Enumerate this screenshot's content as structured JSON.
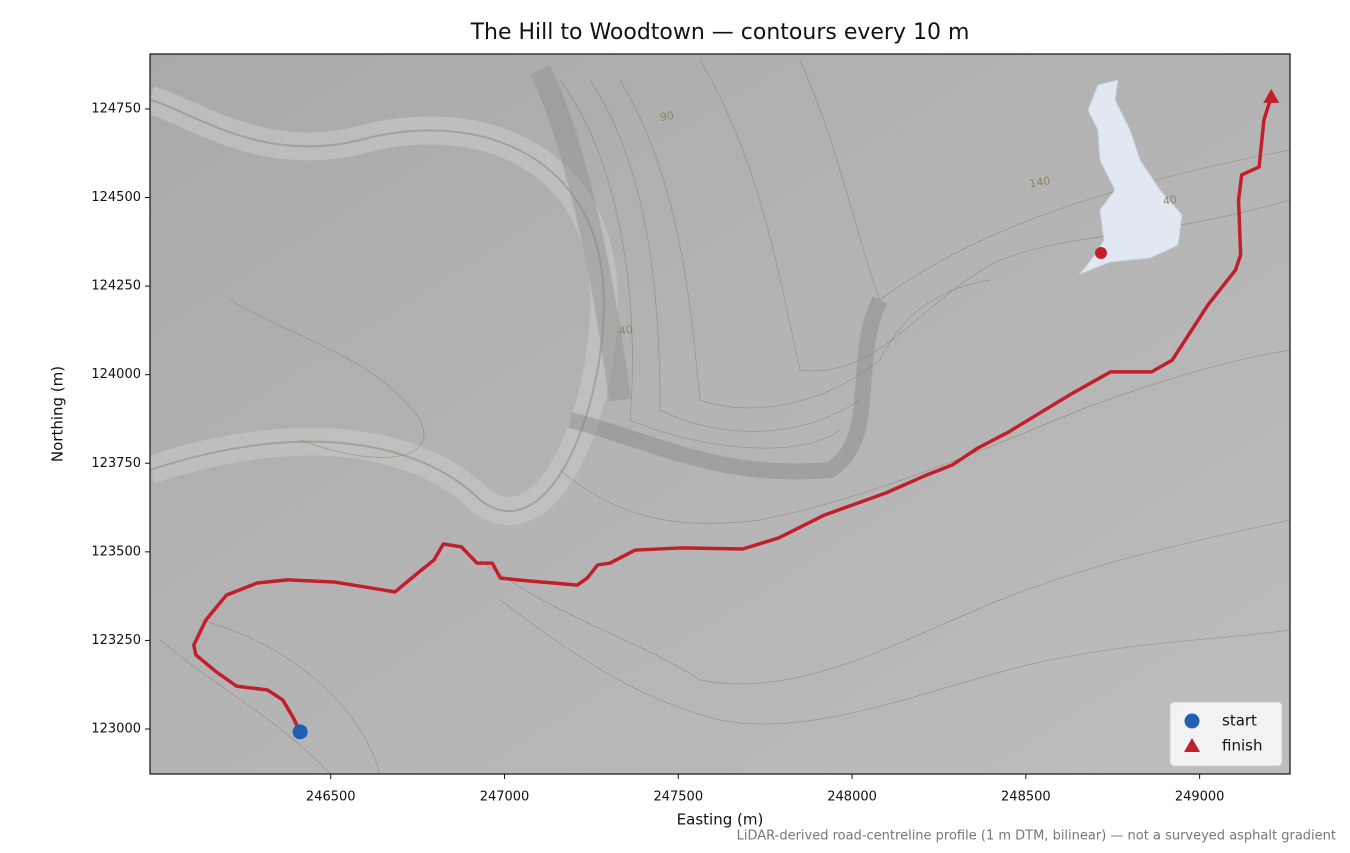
{
  "chart_data": {
    "type": "line",
    "title": "The Hill to Woodtown — contours every 10 m",
    "xlabel": "Easting (m)",
    "ylabel": "Northing (m)",
    "note": "LiDAR-derived road-centreline profile (1 m DTM, bilinear) — not a surveyed asphalt gradient",
    "xlim": [
      245980,
      249260
    ],
    "ylim": [
      122873,
      124905
    ],
    "xticks": [
      246500,
      247000,
      247500,
      248000,
      248500,
      249000
    ],
    "yticks": [
      123000,
      123250,
      123500,
      123750,
      124000,
      124250,
      124500,
      124750
    ],
    "legend": "lower right",
    "annotations": [
      "90",
      "40",
      "140",
      "40"
    ],
    "series": [
      {
        "color": "#c11f2c",
        "x": [
          246412,
          246391,
          246362,
          246318,
          246229,
          246171,
          246112,
          246106,
          246141,
          246200,
          246288,
          246376,
          246509,
          246685,
          246744,
          246797,
          246824,
          246876,
          246921,
          246965,
          246988,
          247068,
          247141,
          247209,
          247238,
          247268,
          247303,
          247376,
          247509,
          247685,
          247788,
          247921,
          248097,
          248215,
          248288,
          248362,
          248450,
          248626,
          248744,
          248862,
          248921,
          249024,
          249103,
          249118,
          249112,
          249121,
          249171,
          249185,
          249203
        ],
        "values": [
          122992,
          123034,
          123082,
          123110,
          123121,
          123161,
          123209,
          123237,
          123308,
          123378,
          123412,
          123421,
          123415,
          123387,
          123435,
          123477,
          123522,
          123514,
          123468,
          123468,
          123426,
          123418,
          123412,
          123406,
          123426,
          123463,
          123468,
          123505,
          123511,
          123508,
          123539,
          123604,
          123666,
          123717,
          123745,
          123793,
          123838,
          123943,
          124008,
          124008,
          124041,
          124197,
          124295,
          124338,
          124493,
          124564,
          124586,
          124719,
          124775
        ]
      },
      {
        "name": "start",
        "color": "#1f5fb4",
        "marker": "circle",
        "x": [
          246412
        ],
        "values": [
          122992
        ]
      },
      {
        "name": "finish",
        "color": "#c11f2c",
        "marker": "triangle",
        "x": [
          249206
        ],
        "values": [
          124784
        ]
      }
    ]
  }
}
